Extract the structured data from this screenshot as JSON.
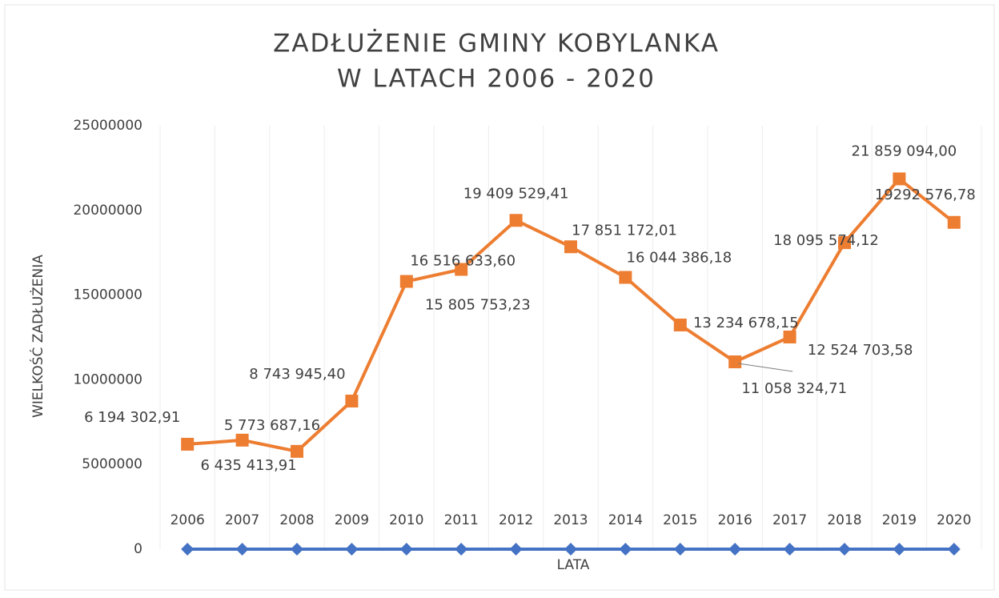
{
  "chart_data": {
    "type": "line",
    "title": "ZADŁUŻENIE GMINY KOBYLANKA",
    "subtitle": "W LATACH 2006 - 2020",
    "x_label": "LATA",
    "y_label": "WIELKOŚĆ ZADŁUŻENIA",
    "categories": [
      "2006",
      "2007",
      "2008",
      "2009",
      "2010",
      "2011",
      "2012",
      "2013",
      "2014",
      "2015",
      "2016",
      "2017",
      "2018",
      "2019",
      "2020"
    ],
    "series": [
      {
        "color": "#4472c4",
        "marker": "diamond",
        "values": [
          2006,
          2007,
          2008,
          2009,
          2010,
          2011,
          2012,
          2013,
          2014,
          2015,
          2016,
          2017,
          2018,
          2019,
          2020
        ]
      },
      {
        "color": "#ed7d31",
        "marker": "square",
        "values": [
          6194302.91,
          6435413.91,
          5773687.16,
          8743945.4,
          15805753.23,
          16516633.6,
          19409529.41,
          17851172.01,
          16044386.18,
          13234678.15,
          11058324.71,
          12524703.58,
          18095574.12,
          21859094.0,
          19292576.78
        ],
        "value_labels": [
          "6 194 302,91",
          "6 435 413,91",
          "5 773 687,16",
          "8 743 945,40",
          "15 805 753,23",
          "16 516 633,60",
          "19 409 529,41",
          "17 851 172,01",
          "16 044 386,18",
          "13 234 678,15",
          "11 058 324,71",
          "12 524 703,58",
          "18 095 574,12",
          "21 859 094,00",
          "19292 576,78"
        ]
      }
    ],
    "ylim": [
      0,
      25000000
    ],
    "yticks": [
      0,
      5000000,
      10000000,
      15000000,
      20000000,
      25000000
    ],
    "grid": true
  }
}
